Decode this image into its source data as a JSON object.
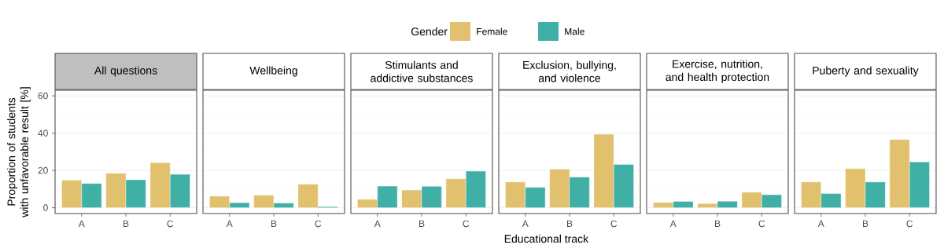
{
  "chart_data": [
    {
      "type": "bar",
      "title": "All questions",
      "ylabel": "Proportion of students with unfavorable result [%]",
      "legend_title": "Gender",
      "legend": "top",
      "categories": [
        "A",
        "B",
        "C"
      ],
      "ylim": [
        -3.1,
        63
      ],
      "yticks": [
        0,
        20,
        40,
        60
      ],
      "grid": "y",
      "series": [
        {
          "name": "Female",
          "color": "#e1c16e",
          "values": [
            14.8,
            18.5,
            24.2
          ]
        },
        {
          "name": "Male",
          "color": "#40b0a6",
          "values": [
            13.0,
            15.0,
            17.9
          ]
        }
      ]
    },
    {
      "type": "bar",
      "title": "Wellbeing",
      "categories": [
        "A",
        "B",
        "C"
      ],
      "ylim": [
        -3.1,
        63
      ],
      "yticks": [
        0,
        20,
        40,
        60
      ],
      "grid": "y",
      "tick_labels": "x",
      "series": [
        {
          "color": "#e1c16e",
          "values": [
            6.2,
            6.7,
            12.6
          ]
        },
        {
          "color": "#40b0a6",
          "values": [
            2.7,
            2.5,
            0.6
          ]
        }
      ]
    },
    {
      "type": "bar",
      "title": "Stimulants and addictive substances",
      "categories": [
        "A",
        "B",
        "C"
      ],
      "ylim": [
        -3.1,
        63
      ],
      "yticks": [
        0,
        20,
        40,
        60
      ],
      "grid": "y",
      "tick_labels": "x",
      "series": [
        {
          "color": "#e1c16e",
          "values": [
            4.5,
            9.5,
            15.5
          ]
        },
        {
          "color": "#40b0a6",
          "values": [
            11.6,
            11.5,
            19.6
          ]
        }
      ]
    },
    {
      "type": "bar",
      "title": "Exclusion, bullying, and violence",
      "xlabel": "Educational track",
      "categories": [
        "A",
        "B",
        "C"
      ],
      "ylim": [
        -3.1,
        63
      ],
      "yticks": [
        0,
        20,
        40,
        60
      ],
      "grid": "y",
      "tick_labels": "x",
      "series": [
        {
          "color": "#e1c16e",
          "values": [
            13.8,
            20.7,
            39.4
          ]
        },
        {
          "color": "#40b0a6",
          "values": [
            10.9,
            16.5,
            23.2
          ]
        }
      ]
    },
    {
      "type": "bar",
      "title": "Exercise, nutrition, and health protection",
      "categories": [
        "A",
        "B",
        "C"
      ],
      "ylim": [
        -3.1,
        63
      ],
      "yticks": [
        0,
        20,
        40,
        60
      ],
      "grid": "y",
      "tick_labels": "x",
      "series": [
        {
          "color": "#e1c16e",
          "values": [
            2.8,
            2.2,
            8.3
          ]
        },
        {
          "color": "#40b0a6",
          "values": [
            3.4,
            3.5,
            7.0
          ]
        }
      ]
    },
    {
      "type": "bar",
      "title": "Puberty and sexuality",
      "categories": [
        "A",
        "B",
        "C"
      ],
      "ylim": [
        -3.1,
        63
      ],
      "yticks": [
        0,
        20,
        40,
        60
      ],
      "grid": "y",
      "tick_labels": "x",
      "series": [
        {
          "color": "#e1c16e",
          "values": [
            13.8,
            21.0,
            36.6
          ]
        },
        {
          "color": "#40b0a6",
          "values": [
            7.6,
            13.8,
            24.6
          ]
        }
      ]
    }
  ]
}
